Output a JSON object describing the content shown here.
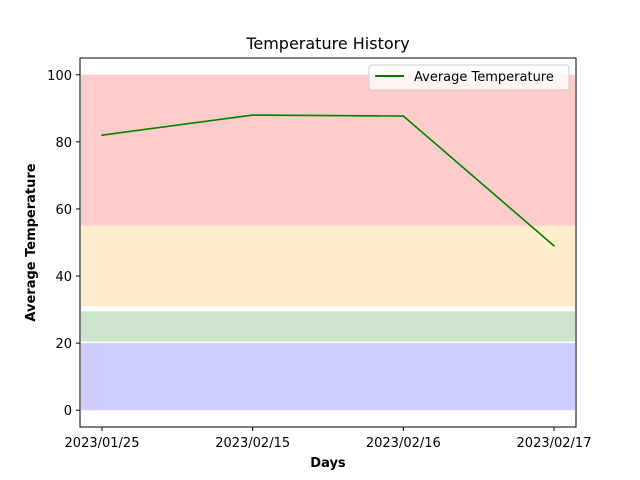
{
  "chart_data": {
    "type": "line",
    "title": "Temperature History",
    "xlabel": "Days",
    "ylabel": "Average Temperature",
    "categories": [
      "2023/01/25",
      "2023/02/15",
      "2023/02/16",
      "2023/02/17"
    ],
    "series": [
      {
        "name": "Average Temperature",
        "values": [
          82,
          88,
          87.7,
          49
        ],
        "color": "#008000"
      }
    ],
    "ylim": [
      -5,
      105
    ],
    "yticks": [
      0,
      20,
      40,
      60,
      80,
      100
    ],
    "grid": false,
    "legend_position": "top-right",
    "bands": [
      {
        "from": 0,
        "to": 20,
        "color": "#ccccff"
      },
      {
        "from": 20.5,
        "to": 29.5,
        "color": "#cde5cd"
      },
      {
        "from": 31,
        "to": 55,
        "color": "#ffedcc"
      },
      {
        "from": 55,
        "to": 100,
        "color": "#ffcccc"
      }
    ]
  }
}
